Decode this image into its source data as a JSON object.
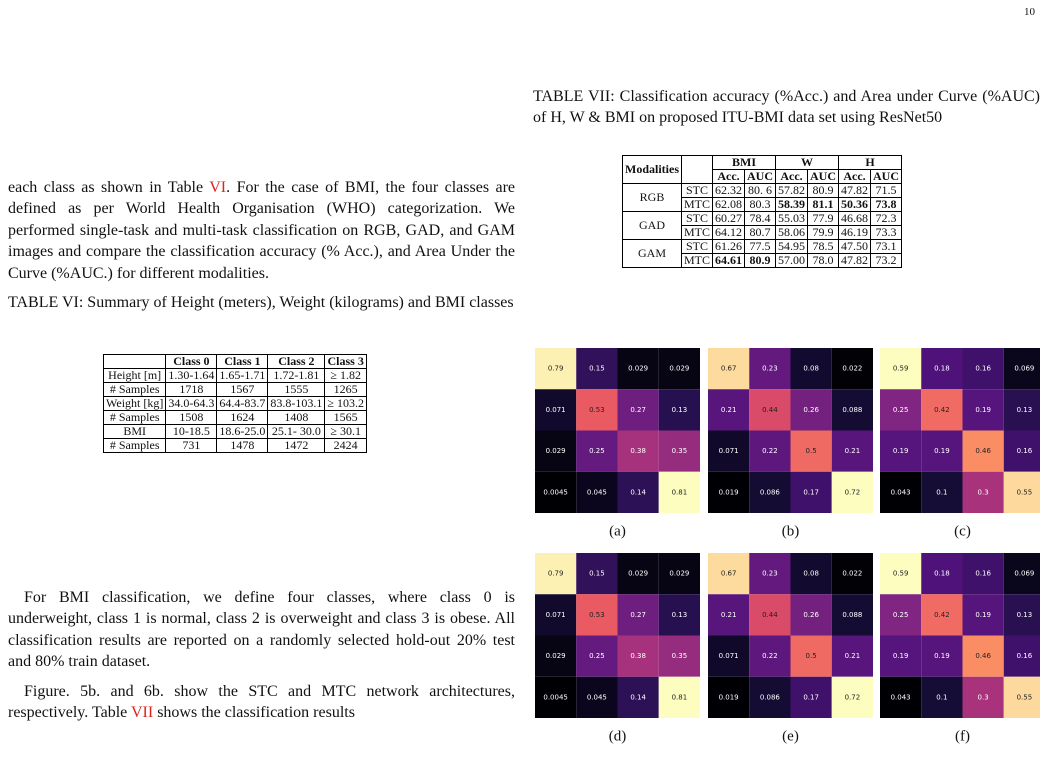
{
  "page_number": "10",
  "p1": [
    "each class as shown in Table ",
    "VI",
    ". For the case of BMI, the four classes are defined as per World Health Organisation (WHO) categorization. We performed single-task and multi-task classification on RGB, GAD, and GAM images and compare the classification accuracy (% Acc.), and Area Under the Curve (%AUC.) for different modalities."
  ],
  "table6": {
    "caption": "TABLE VI: Summary of Height (meters), Weight (kilograms) and BMI classes",
    "header": [
      "Class 0",
      "Class 1",
      "Class 2",
      "Class 3"
    ],
    "rows": [
      [
        "Height [m]",
        "1.30-1.64",
        "1.65-1.71",
        "1.72-1.81",
        "≥ 1.82"
      ],
      [
        "# Samples",
        "1718",
        "1567",
        "1555",
        "1265"
      ],
      [
        "Weight [kg]",
        "34.0-64.3",
        "64.4-83.7",
        "83.8-103.1",
        "≥ 103.2"
      ],
      [
        "# Samples",
        "1508",
        "1624",
        "1408",
        "1565"
      ],
      [
        "BMI",
        "10-18.5",
        "18.6-25.0",
        "25.1- 30.0",
        "≥ 30.1"
      ],
      [
        "# Samples",
        "731",
        "1478",
        "1472",
        "2424"
      ]
    ]
  },
  "p2": "For BMI classification, we define four classes, where class 0 is underweight, class 1 is normal, class 2 is overweight and class 3 is obese. All classification results are reported on a randomly selected hold-out 20% test and 80% train dataset.",
  "p3": [
    "Figure. 5b. and 6b. show the STC and MTC network architectures, respectively. Table ",
    "VII",
    " shows the classification results"
  ],
  "table7": {
    "caption": "TABLE VII: Classification accuracy (%Acc.) and Area under Curve (%AUC) of H, W & BMI on proposed ITU-BMI data set using ResNet50",
    "corner": "Modalities",
    "groups_head": [
      "BMI",
      "W",
      "H"
    ],
    "sub_head": [
      "Acc.",
      "AUC",
      "Acc.",
      "AUC",
      "Acc.",
      "AUC"
    ],
    "groups": [
      {
        "name": "RGB",
        "rows": [
          [
            "STC",
            "62.32",
            "80. 6",
            "57.82",
            "80.9",
            "47.82",
            "71.5"
          ],
          [
            "MTC",
            "62.08",
            "80.3",
            {
              "text": "58.39",
              "bold": true
            },
            {
              "text": "81.1",
              "bold": true
            },
            {
              "text": "50.36",
              "bold": true
            },
            {
              "text": "73.8",
              "bold": true
            }
          ]
        ]
      },
      {
        "name": "GAD",
        "rows": [
          [
            "STC",
            "60.27",
            "78.4",
            "55.03",
            "77.9",
            "46.68",
            "72.3"
          ],
          [
            "MTC",
            "64.12",
            "80.7",
            "58.06",
            "79.9",
            "46.19",
            "73.3"
          ]
        ]
      },
      {
        "name": "GAM",
        "rows": [
          [
            "STC",
            "61.26",
            "77.5",
            "54.95",
            "78.5",
            "47.50",
            "73.1"
          ],
          [
            "MTC",
            {
              "text": "64.61",
              "bold": true
            },
            {
              "text": "80.9",
              "bold": true
            },
            "57.00",
            "78.0",
            "47.82",
            "73.2"
          ]
        ]
      }
    ]
  },
  "figure": {
    "panels": [
      {
        "label": "(a)",
        "matrix": [
          [
            0.79,
            0.15,
            0.029,
            0.029
          ],
          [
            0.071,
            0.53,
            0.27,
            0.13
          ],
          [
            0.029,
            0.25,
            0.38,
            0.35
          ],
          [
            0.0045,
            0.045,
            0.14,
            0.81
          ]
        ]
      },
      {
        "label": "(b)",
        "matrix": [
          [
            0.67,
            0.23,
            0.08,
            0.022
          ],
          [
            0.21,
            0.44,
            0.26,
            0.088
          ],
          [
            0.071,
            0.22,
            0.5,
            0.21
          ],
          [
            0.019,
            0.086,
            0.17,
            0.72
          ]
        ]
      },
      {
        "label": "(c)",
        "matrix": [
          [
            0.59,
            0.18,
            0.16,
            0.069
          ],
          [
            0.25,
            0.42,
            0.19,
            0.13
          ],
          [
            0.19,
            0.19,
            0.46,
            0.16
          ],
          [
            0.043,
            0.1,
            0.3,
            0.55
          ]
        ]
      },
      {
        "label": "(d)",
        "matrix": [
          [
            0.79,
            0.15,
            0.029,
            0.029
          ],
          [
            0.071,
            0.53,
            0.27,
            0.13
          ],
          [
            0.029,
            0.25,
            0.38,
            0.35
          ],
          [
            0.0045,
            0.045,
            0.14,
            0.81
          ]
        ]
      },
      {
        "label": "(e)",
        "matrix": [
          [
            0.67,
            0.23,
            0.08,
            0.022
          ],
          [
            0.21,
            0.44,
            0.26,
            0.088
          ],
          [
            0.071,
            0.22,
            0.5,
            0.21
          ],
          [
            0.019,
            0.086,
            0.17,
            0.72
          ]
        ]
      },
      {
        "label": "(f)",
        "matrix": [
          [
            0.59,
            0.18,
            0.16,
            0.069
          ],
          [
            0.25,
            0.42,
            0.19,
            0.13
          ],
          [
            0.19,
            0.19,
            0.46,
            0.16
          ],
          [
            0.043,
            0.1,
            0.3,
            0.55
          ]
        ]
      }
    ]
  }
}
